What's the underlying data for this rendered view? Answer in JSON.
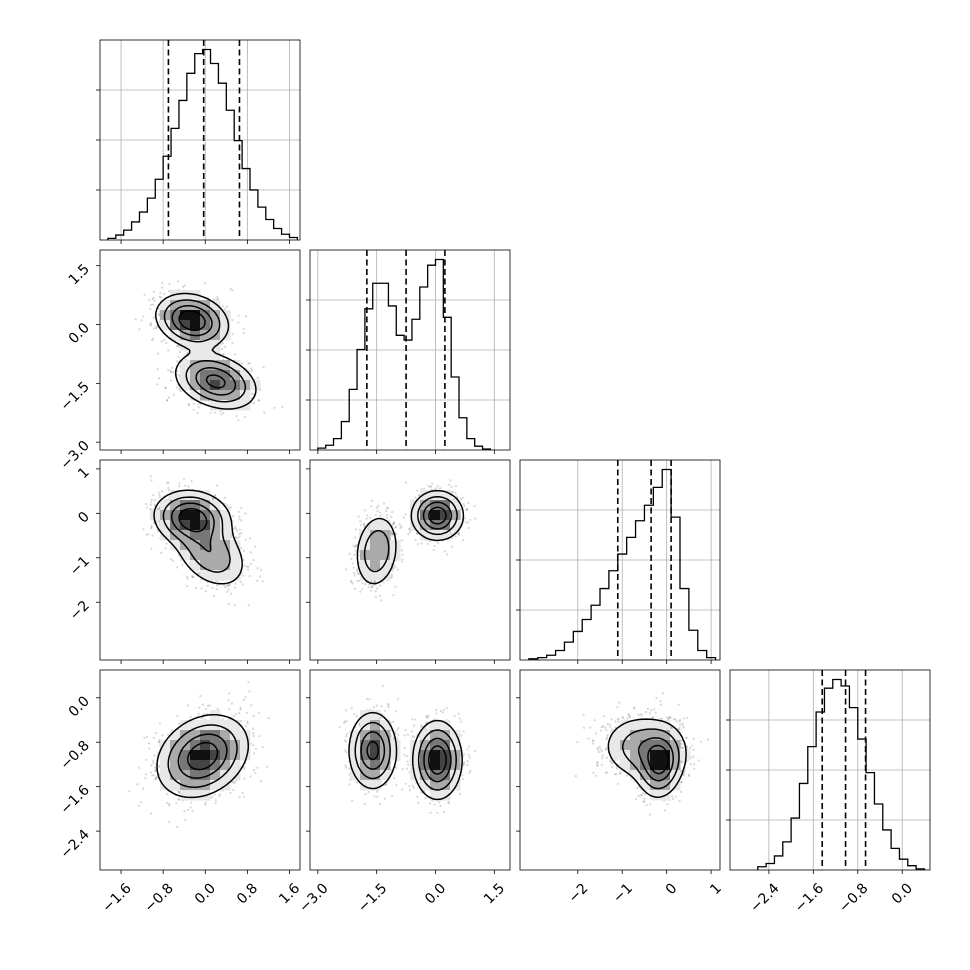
{
  "chart_data": {
    "type": "corner",
    "parameters": 4,
    "parameter_labels": [
      "",
      "",
      "",
      ""
    ],
    "show_grid_on_diagonal": true,
    "quantiles": [
      0.16,
      0.5,
      0.84
    ],
    "contour_levels": 4,
    "scatter_points": true,
    "axes": [
      {
        "range": [
          -2.0,
          1.8
        ],
        "ticks": [
          -1.6,
          -0.8,
          0.0,
          0.8,
          1.6
        ],
        "tick_labels": [
          "−1.6",
          "−0.8",
          "0.0",
          "0.8",
          "1.6"
        ]
      },
      {
        "range": [
          -3.2,
          1.9
        ],
        "ticks": [
          -3.0,
          -1.5,
          0.0,
          1.5
        ],
        "tick_labels": [
          "−3.0",
          "−1.5",
          "0.0",
          "1.5"
        ]
      },
      {
        "range": [
          -3.3,
          1.2
        ],
        "ticks": [
          -2,
          -1,
          0,
          1
        ],
        "tick_labels": [
          "−2",
          "−1",
          "0",
          "1"
        ]
      },
      {
        "range": [
          -3.1,
          0.5
        ],
        "ticks": [
          -2.4,
          -1.6,
          -0.8,
          0.0
        ],
        "tick_labels": [
          "−2.4",
          "−1.6",
          "−0.8",
          "0.0"
        ]
      }
    ],
    "diagonal_histograms": [
      {
        "bin_edges": [
          -1.85,
          -1.7,
          -1.55,
          -1.4,
          -1.25,
          -1.1,
          -0.95,
          -0.8,
          -0.65,
          -0.5,
          -0.35,
          -0.2,
          -0.05,
          0.1,
          0.25,
          0.4,
          0.55,
          0.7,
          0.85,
          1.0,
          1.15,
          1.3,
          1.45,
          1.6,
          1.75
        ],
        "counts": [
          0.2,
          0.6,
          1.2,
          2.2,
          3.4,
          5.1,
          7.4,
          10.2,
          13.6,
          17.0,
          20.3,
          22.7,
          23.2,
          21.5,
          19.1,
          15.8,
          12.1,
          8.7,
          6.1,
          4.0,
          2.5,
          1.4,
          0.7,
          0.3
        ],
        "quantiles": [
          -0.7,
          -0.03,
          0.65
        ]
      },
      {
        "bin_edges": [
          -3.0,
          -2.8,
          -2.6,
          -2.4,
          -2.2,
          -2.0,
          -1.8,
          -1.6,
          -1.4,
          -1.2,
          -1.0,
          -0.8,
          -0.6,
          -0.4,
          -0.2,
          0.0,
          0.2,
          0.4,
          0.6,
          0.8,
          1.0,
          1.2,
          1.4
        ],
        "counts": [
          0.2,
          0.5,
          1.2,
          3.0,
          6.4,
          10.6,
          14.9,
          17.6,
          17.6,
          15.2,
          12.1,
          11.6,
          13.8,
          17.2,
          19.5,
          20.1,
          14.0,
          7.7,
          3.4,
          1.2,
          0.4,
          0.1
        ],
        "quantiles": [
          -1.75,
          -0.75,
          0.24
        ]
      },
      {
        "bin_edges": [
          -3.1,
          -2.9,
          -2.7,
          -2.5,
          -2.3,
          -2.1,
          -1.9,
          -1.7,
          -1.5,
          -1.3,
          -1.1,
          -0.9,
          -0.7,
          -0.5,
          -0.3,
          -0.1,
          0.1,
          0.3,
          0.5,
          0.7,
          0.9,
          1.1
        ],
        "counts": [
          0.1,
          0.2,
          0.4,
          0.8,
          1.5,
          2.4,
          3.4,
          4.6,
          6.0,
          7.5,
          8.9,
          10.3,
          11.7,
          13.0,
          14.5,
          16.0,
          12.0,
          6.0,
          2.5,
          0.8,
          0.2
        ],
        "quantiles": [
          -1.1,
          -0.35,
          0.1
        ]
      },
      {
        "bin_edges": [
          -2.6,
          -2.45,
          -2.3,
          -2.15,
          -2.0,
          -1.85,
          -1.7,
          -1.55,
          -1.4,
          -1.25,
          -1.1,
          -0.95,
          -0.8,
          -0.65,
          -0.5,
          -0.35,
          -0.2,
          -0.05,
          0.1,
          0.25,
          0.4
        ],
        "counts": [
          0.3,
          0.6,
          1.3,
          2.6,
          4.8,
          8.0,
          11.4,
          14.6,
          16.8,
          17.6,
          17.0,
          15.0,
          12.1,
          9.0,
          6.1,
          3.7,
          2.0,
          1.0,
          0.4,
          0.1
        ],
        "quantiles": [
          -1.44,
          -1.02,
          -0.66
        ]
      }
    ],
    "pair_panels": [
      {
        "x": 0,
        "y": 1,
        "modes": [
          {
            "center": [
              -0.25,
              0.1
            ],
            "sigma": [
              0.33,
              0.33
            ],
            "rho": -0.2,
            "weight": 0.5
          },
          {
            "center": [
              0.2,
              -1.45
            ],
            "sigma": [
              0.38,
              0.35
            ],
            "rho": -0.3,
            "weight": 0.5
          }
        ]
      },
      {
        "x": 0,
        "y": 2,
        "modes": [
          {
            "center": [
              -0.25,
              -0.1
            ],
            "sigma": [
              0.35,
              0.3
            ],
            "rho": -0.1,
            "weight": 0.6
          },
          {
            "center": [
              0.1,
              -0.9
            ],
            "sigma": [
              0.35,
              0.4
            ],
            "rho": -0.35,
            "weight": 0.4
          }
        ]
      },
      {
        "x": 1,
        "y": 2,
        "modes": [
          {
            "center": [
              -1.5,
              -0.85
            ],
            "sigma": [
              0.28,
              0.42
            ],
            "rho": 0.15,
            "weight": 0.42
          },
          {
            "center": [
              0.05,
              -0.05
            ],
            "sigma": [
              0.32,
              0.27
            ],
            "rho": 0.0,
            "weight": 0.58
          }
        ]
      },
      {
        "x": 0,
        "y": 3,
        "modes": [
          {
            "center": [
              -0.05,
              -1.05
            ],
            "sigma": [
              0.42,
              0.36
            ],
            "rho": 0.25,
            "weight": 1.0
          }
        ]
      },
      {
        "x": 1,
        "y": 3,
        "modes": [
          {
            "center": [
              -1.6,
              -0.95
            ],
            "sigma": [
              0.3,
              0.34
            ],
            "rho": 0.0,
            "weight": 0.46
          },
          {
            "center": [
              0.05,
              -1.12
            ],
            "sigma": [
              0.3,
              0.34
            ],
            "rho": 0.0,
            "weight": 0.54
          }
        ]
      },
      {
        "x": 2,
        "y": 3,
        "modes": [
          {
            "center": [
              -0.5,
              -0.9
            ],
            "sigma": [
              0.48,
              0.3
            ],
            "rho": -0.05,
            "weight": 0.55
          },
          {
            "center": [
              -0.15,
              -1.2
            ],
            "sigma": [
              0.25,
              0.3
            ],
            "rho": 0.1,
            "weight": 0.45
          }
        ]
      }
    ]
  }
}
